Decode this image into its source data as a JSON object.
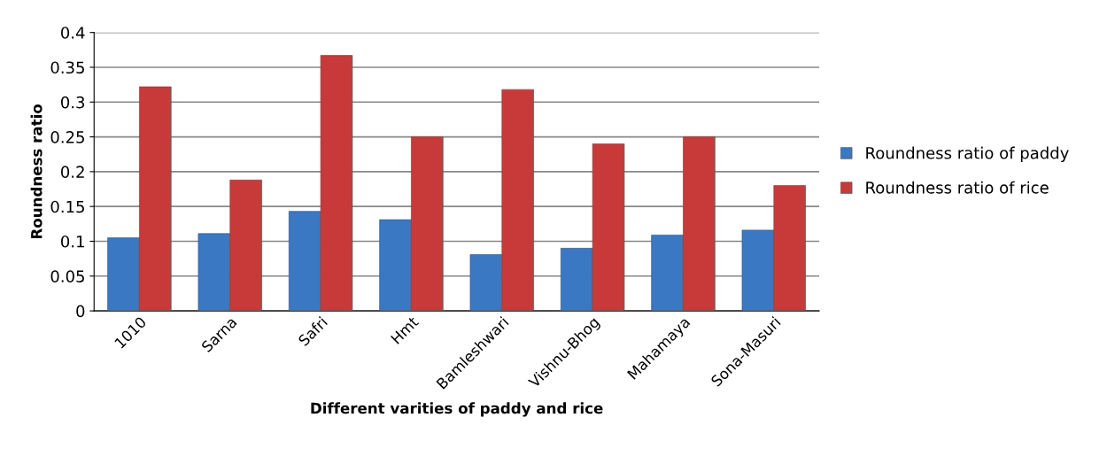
{
  "chart_data": {
    "type": "bar",
    "xlabel": "Different varities of paddy and rice",
    "ylabel": "Roundness ratio",
    "categories": [
      "1010",
      "Sarna",
      "Safri",
      "Hmt",
      "Bamleshwari",
      "Vishnu-Bhog",
      "Mahamaya",
      "Sona-Masuri"
    ],
    "series": [
      {
        "name": "Roundness ratio of paddy",
        "color": "#3a78c4",
        "values": [
          0.105,
          0.111,
          0.143,
          0.131,
          0.081,
          0.09,
          0.109,
          0.116
        ]
      },
      {
        "name": "Roundness ratio of rice",
        "color": "#c83a3a",
        "values": [
          0.322,
          0.188,
          0.367,
          0.25,
          0.318,
          0.24,
          0.25,
          0.18
        ]
      }
    ],
    "ylim": [
      0,
      0.4
    ],
    "yticks": [
      0,
      0.05,
      0.1,
      0.15,
      0.2,
      0.25,
      0.3,
      0.35,
      0.4
    ],
    "grid": "y",
    "legend": "right"
  }
}
